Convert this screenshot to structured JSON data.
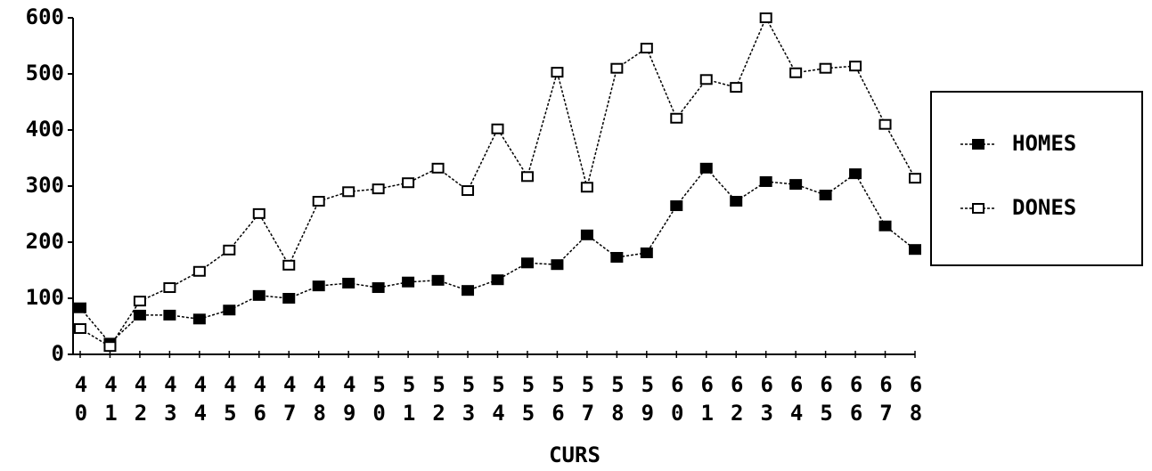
{
  "chart_data": {
    "type": "line",
    "x_label": "CURS",
    "categories": [
      "40",
      "41",
      "42",
      "43",
      "44",
      "45",
      "46",
      "47",
      "48",
      "49",
      "50",
      "51",
      "52",
      "53",
      "54",
      "55",
      "56",
      "57",
      "58",
      "59",
      "60",
      "61",
      "62",
      "63",
      "64",
      "65",
      "66",
      "67",
      "68"
    ],
    "series": [
      {
        "name": "HOMES",
        "color": "#000000",
        "marker": "filled",
        "values": [
          83,
          20,
          70,
          70,
          63,
          79,
          105,
          100,
          122,
          127,
          119,
          129,
          132,
          114,
          133,
          163,
          160,
          213,
          173,
          181,
          265,
          332,
          273,
          308,
          303,
          284,
          322,
          229,
          187
        ]
      },
      {
        "name": "DONES",
        "color": "#000000",
        "marker": "open",
        "values": [
          46,
          14,
          95,
          119,
          148,
          186,
          251,
          159,
          273,
          290,
          295,
          306,
          332,
          292,
          402,
          317,
          503,
          298,
          510,
          546,
          421,
          490,
          476,
          600,
          502,
          510,
          514,
          410,
          314
        ]
      }
    ],
    "ylim": [
      0,
      600
    ],
    "yticks": [
      0,
      100,
      200,
      300,
      400,
      500,
      600
    ],
    "legend": "right"
  }
}
